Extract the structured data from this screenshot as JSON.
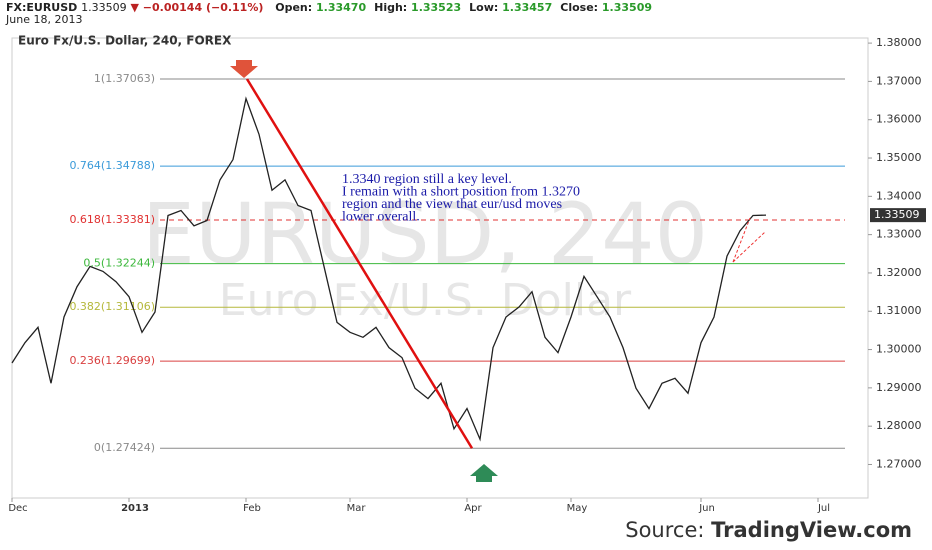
{
  "header": {
    "symbol": "FX:EURUSD",
    "price": "1.33509",
    "change": "−0.00144 (−0.11%)",
    "fields": [
      {
        "label": "Open:",
        "value": "1.33470"
      },
      {
        "label": "High:",
        "value": "1.33523"
      },
      {
        "label": "Low:",
        "value": "1.33457"
      },
      {
        "label": "Close:",
        "value": "1.33509"
      }
    ],
    "date": "June 18, 2013"
  },
  "source": {
    "label": "Source:",
    "site": "TradingView.com"
  },
  "chart_data": {
    "type": "line",
    "title": "Euro Fx/U.S. Dollar, 240, FOREX",
    "watermark": [
      "EURUSD, 240",
      "Euro Fx/U.S. Dollar"
    ],
    "categories": [
      "Dec",
      null,
      null,
      null,
      null,
      null,
      null,
      null,
      null,
      "2013",
      null,
      null,
      null,
      null,
      null,
      null,
      null,
      null,
      "Feb",
      null,
      null,
      null,
      null,
      null,
      null,
      null,
      "Mar",
      null,
      null,
      null,
      null,
      null,
      null,
      null,
      null,
      "Apr",
      null,
      null,
      null,
      null,
      null,
      null,
      null,
      "May",
      null,
      null,
      null,
      null,
      null,
      null,
      null,
      null,
      null,
      "Jun",
      null,
      null,
      null,
      null,
      null,
      null,
      null,
      null,
      "Jul",
      null,
      null,
      null
    ],
    "series": [
      {
        "name": "EURUSD",
        "color": "#222222",
        "values": [
          1.2965,
          1.3018,
          1.3058,
          1.2912,
          1.3085,
          1.3164,
          1.3217,
          1.3204,
          1.3177,
          1.3138,
          1.3045,
          1.3098,
          1.335,
          1.3363,
          1.3323,
          1.3337,
          1.3443,
          1.3496,
          1.3655,
          1.3562,
          1.3416,
          1.3443,
          1.3376,
          1.3363,
          1.3217,
          1.3071,
          1.3045,
          1.3032,
          1.3058,
          1.3005,
          1.2979,
          1.2899,
          1.2872,
          1.2912,
          1.2793,
          1.2846,
          1.2766,
          1.3005,
          1.3085,
          1.3111,
          1.3151,
          1.3032,
          1.2992,
          1.3085,
          1.3191,
          1.3138,
          1.3085,
          1.3005,
          1.2899,
          1.2846,
          1.2912,
          1.2925,
          1.2886,
          1.3018,
          1.3085,
          1.3244,
          1.331,
          1.335,
          1.3351,
          null,
          null,
          null,
          null,
          null,
          null,
          null
        ]
      }
    ],
    "ylim": [
      1.26125,
      1.38133
    ],
    "yticks": [
      {
        "value": 1.27,
        "label": "1.27000"
      },
      {
        "value": 1.28,
        "label": "1.28000"
      },
      {
        "value": 1.29,
        "label": "1.29000"
      },
      {
        "value": 1.3,
        "label": "1.30000"
      },
      {
        "value": 1.31,
        "label": "1.31000"
      },
      {
        "value": 1.32,
        "label": "1.32000"
      },
      {
        "value": 1.33,
        "label": "1.33000"
      },
      {
        "value": 1.34,
        "label": "1.34000"
      },
      {
        "value": 1.35,
        "label": "1.35000"
      },
      {
        "value": 1.36,
        "label": "1.36000"
      },
      {
        "value": 1.37,
        "label": "1.37000"
      },
      {
        "value": 1.38,
        "label": "1.38000"
      }
    ],
    "last_price": {
      "value": 1.33509,
      "label": "1.33509"
    },
    "fib_levels": [
      {
        "label": "1(1.37063)",
        "value": 1.37063,
        "color": "#8a8a8a",
        "dashed": false
      },
      {
        "label": "0.764(1.34788)",
        "value": 1.34788,
        "color": "#3a9ad9",
        "dashed": false
      },
      {
        "label": "0.618(1.33381)",
        "value": 1.33381,
        "color": "#e03030",
        "dashed": true
      },
      {
        "label": "0.5(1.32244)",
        "value": 1.32244,
        "color": "#3cb83c",
        "dashed": false
      },
      {
        "label": "0.382(1.31106)",
        "value": 1.31106,
        "color": "#b5b83c",
        "dashed": false
      },
      {
        "label": "0.236(1.29699)",
        "value": 1.29699,
        "color": "#d94040",
        "dashed": false
      },
      {
        "label": "0(1.27424)",
        "value": 1.27424,
        "color": "#8a8a8a",
        "dashed": false
      }
    ],
    "trendline": {
      "from": 1.37063,
      "to": 1.27424,
      "color": "#e01010"
    },
    "annotation": [
      "1.3340 region still a key level.",
      "I remain with a short position from 1.3270",
      "region and the view that eur/usd moves",
      "lower overall."
    ]
  }
}
